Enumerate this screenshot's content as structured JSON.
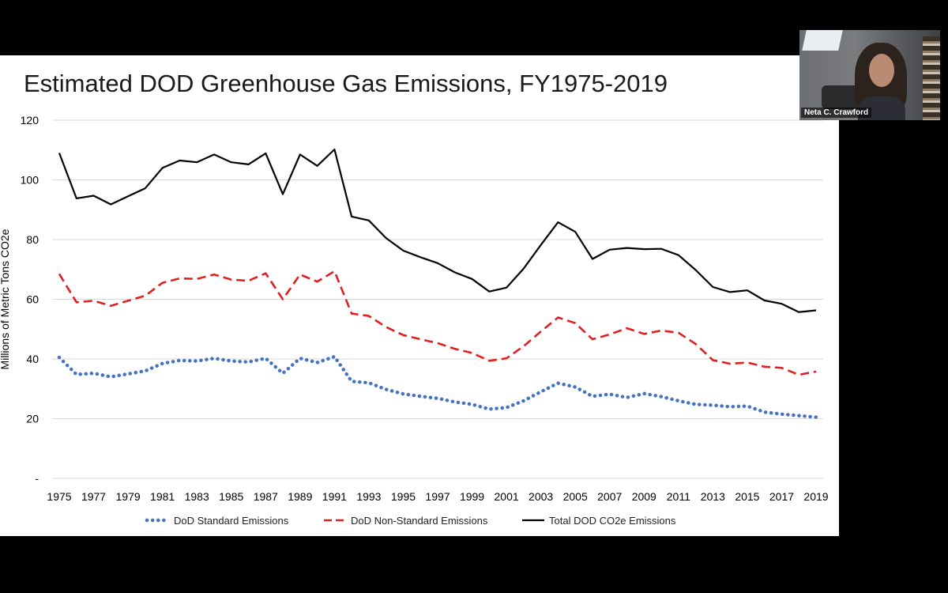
{
  "slide": {
    "title": "Estimated DOD Greenhouse Gas Emissions, FY1975-2019"
  },
  "video": {
    "participant_name": "Neta C. Crawford"
  },
  "chart_data": {
    "type": "line",
    "title": "Estimated DOD Greenhouse Gas Emissions, FY1975-2019",
    "xlabel": "",
    "ylabel": "Millions of Metric Tons CO2e",
    "ylim": [
      0,
      120
    ],
    "y_ticks": [
      {
        "value": 0,
        "label": "-"
      },
      {
        "value": 20,
        "label": "20"
      },
      {
        "value": 40,
        "label": "40"
      },
      {
        "value": 60,
        "label": "60"
      },
      {
        "value": 80,
        "label": "80"
      },
      {
        "value": 100,
        "label": "100"
      },
      {
        "value": 120,
        "label": "120"
      }
    ],
    "x": [
      1975,
      1976,
      1977,
      1978,
      1979,
      1980,
      1981,
      1982,
      1983,
      1984,
      1985,
      1986,
      1987,
      1988,
      1989,
      1990,
      1991,
      1992,
      1993,
      1994,
      1995,
      1996,
      1997,
      1998,
      1999,
      2000,
      2001,
      2002,
      2003,
      2004,
      2005,
      2006,
      2007,
      2008,
      2009,
      2010,
      2011,
      2012,
      2013,
      2014,
      2015,
      2016,
      2017,
      2018,
      2019
    ],
    "x_tick_labels": [
      "1975",
      "1977",
      "1979",
      "1981",
      "1983",
      "1985",
      "1987",
      "1989",
      "1991",
      "1993",
      "1995",
      "1997",
      "1999",
      "2001",
      "2003",
      "2005",
      "2007",
      "2009",
      "2011",
      "2013",
      "2015",
      "2017",
      "2019"
    ],
    "grid": true,
    "legend_position": "bottom",
    "series": [
      {
        "name": "DoD Standard Emissions",
        "color": "#4472C4",
        "style": "dotted",
        "values": [
          40.5,
          34.8,
          35.2,
          34.0,
          35.0,
          36.0,
          38.5,
          39.5,
          39.3,
          40.2,
          39.3,
          39.0,
          40.2,
          35.2,
          40.2,
          38.8,
          40.8,
          32.5,
          32.0,
          29.8,
          28.3,
          27.5,
          26.8,
          25.6,
          24.8,
          23.2,
          23.7,
          26.0,
          29.0,
          31.9,
          30.6,
          27.5,
          28.2,
          27.1,
          28.4,
          27.4,
          26.0,
          24.8,
          24.5,
          24.0,
          24.2,
          22.2,
          21.5,
          21.0,
          20.5
        ]
      },
      {
        "name": "DoD Non-Standard Emissions",
        "color": "#E02020",
        "style": "dashed",
        "values": [
          68.5,
          59.0,
          59.5,
          57.8,
          59.5,
          61.2,
          65.5,
          67.0,
          66.8,
          68.3,
          66.6,
          66.2,
          68.7,
          60.0,
          68.3,
          65.9,
          69.4,
          55.2,
          54.4,
          50.7,
          48.0,
          46.6,
          45.3,
          43.4,
          42.0,
          39.4,
          40.2,
          44.3,
          49.2,
          53.9,
          52.0,
          46.6,
          48.2,
          50.3,
          48.4,
          49.5,
          48.8,
          45.0,
          39.6,
          38.4,
          38.8,
          37.4,
          37.0,
          34.7,
          35.8
        ]
      },
      {
        "name": "Total DOD CO2e Emissions",
        "color": "#000000",
        "style": "solid",
        "values": [
          109.0,
          93.8,
          94.7,
          91.8,
          94.5,
          97.2,
          104.0,
          106.5,
          105.9,
          108.5,
          105.9,
          105.2,
          108.9,
          95.2,
          108.5,
          104.7,
          110.2,
          87.7,
          86.4,
          80.5,
          76.3,
          74.1,
          72.1,
          69.0,
          66.8,
          62.6,
          63.9,
          70.3,
          78.2,
          85.8,
          82.6,
          73.5,
          76.6,
          77.2,
          76.8,
          76.9,
          74.8,
          69.8,
          64.1,
          62.4,
          63.0,
          59.6,
          58.5,
          55.7,
          56.3
        ]
      }
    ]
  }
}
